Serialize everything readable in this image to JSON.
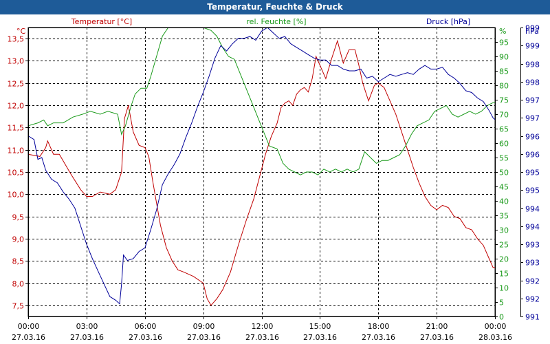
{
  "window": {
    "title": "Temperatur, Feuchte & Druck"
  },
  "colors": {
    "temperature": "#c00000",
    "humidity": "#1a9a1a",
    "pressure": "#000099",
    "titlebar": "#1e5b98"
  },
  "chart_data": {
    "type": "line",
    "title": "Temperatur, Feuchte & Druck",
    "grid": true,
    "x": {
      "range": [
        0,
        24
      ],
      "unit": "hours since 27.03.16 00:00",
      "tick_labels": [
        {
          "time": "00:00",
          "date": "27.03.16"
        },
        {
          "time": "03:00",
          "date": "27.03.16"
        },
        {
          "time": "06:00",
          "date": "27.03.16"
        },
        {
          "time": "09:00",
          "date": "27.03.16"
        },
        {
          "time": "12:00",
          "date": "27.03.16"
        },
        {
          "time": "15:00",
          "date": "27.03.16"
        },
        {
          "time": "18:00",
          "date": "27.03.16"
        },
        {
          "time": "21:00",
          "date": "27.03.16"
        },
        {
          "time": "00:00",
          "date": "28.03.16"
        }
      ]
    },
    "axes": {
      "temperature": {
        "label": "Temperatur [°C]",
        "unit": "°C",
        "range": [
          7.25,
          13.75
        ],
        "ticks": [
          "13,5",
          "13,0",
          "12,5",
          "12,0",
          "11,5",
          "11,0",
          "10,5",
          "10,0",
          "9,5",
          "9,0",
          "8,5",
          "8,0",
          "7,5"
        ]
      },
      "humidity": {
        "label": "rel. Feuchte [%]",
        "unit": "%",
        "range": [
          0,
          100
        ],
        "ticks": [
          "95",
          "90",
          "85",
          "80",
          "75",
          "70",
          "65",
          "60",
          "55",
          "50",
          "45",
          "40",
          "35",
          "30",
          "25",
          "20",
          "15",
          "10",
          "5",
          "0"
        ]
      },
      "pressure": {
        "label": "Druck [hPa]",
        "unit": "hPa",
        "range": [
          991,
          999
        ],
        "ticks": [
          "999",
          "999",
          "998",
          "998",
          "997",
          "997",
          "996",
          "996",
          "995",
          "995",
          "994",
          "994",
          "993",
          "993",
          "992",
          "992",
          "991"
        ]
      }
    },
    "series": [
      {
        "name": "Temperatur [°C]",
        "axis": "temperature",
        "points": [
          [
            0,
            10.9
          ],
          [
            0.6,
            10.85
          ],
          [
            0.9,
            11.05
          ],
          [
            1.0,
            11.2
          ],
          [
            1.3,
            10.9
          ],
          [
            1.6,
            10.9
          ],
          [
            2.2,
            10.45
          ],
          [
            2.7,
            10.1
          ],
          [
            3.0,
            9.95
          ],
          [
            3.3,
            9.95
          ],
          [
            3.7,
            10.05
          ],
          [
            4.2,
            10.0
          ],
          [
            4.5,
            10.1
          ],
          [
            4.8,
            10.5
          ],
          [
            4.95,
            11.7
          ],
          [
            5.15,
            12.0
          ],
          [
            5.4,
            11.4
          ],
          [
            5.7,
            11.1
          ],
          [
            6.0,
            11.05
          ],
          [
            6.2,
            10.85
          ],
          [
            6.4,
            10.3
          ],
          [
            6.6,
            9.8
          ],
          [
            6.8,
            9.3
          ],
          [
            7.1,
            8.8
          ],
          [
            7.4,
            8.5
          ],
          [
            7.7,
            8.3
          ],
          [
            8.0,
            8.25
          ],
          [
            8.5,
            8.15
          ],
          [
            9.0,
            8.0
          ],
          [
            9.2,
            7.65
          ],
          [
            9.4,
            7.5
          ],
          [
            9.7,
            7.65
          ],
          [
            10.0,
            7.85
          ],
          [
            10.4,
            8.25
          ],
          [
            10.8,
            8.85
          ],
          [
            11.2,
            9.4
          ],
          [
            11.6,
            9.9
          ],
          [
            11.9,
            10.4
          ],
          [
            12.2,
            10.9
          ],
          [
            12.5,
            11.3
          ],
          [
            12.8,
            11.6
          ],
          [
            13.0,
            11.95
          ],
          [
            13.2,
            12.05
          ],
          [
            13.4,
            12.1
          ],
          [
            13.6,
            12.0
          ],
          [
            13.8,
            12.25
          ],
          [
            14.0,
            12.35
          ],
          [
            14.2,
            12.4
          ],
          [
            14.4,
            12.3
          ],
          [
            14.6,
            12.6
          ],
          [
            14.8,
            13.1
          ],
          [
            15.0,
            12.9
          ],
          [
            15.3,
            12.6
          ],
          [
            15.6,
            13.05
          ],
          [
            15.9,
            13.45
          ],
          [
            16.2,
            12.95
          ],
          [
            16.5,
            13.25
          ],
          [
            16.8,
            13.25
          ],
          [
            17.0,
            12.9
          ],
          [
            17.2,
            12.5
          ],
          [
            17.5,
            12.1
          ],
          [
            17.8,
            12.45
          ],
          [
            18.0,
            12.5
          ],
          [
            18.3,
            12.4
          ],
          [
            18.6,
            12.1
          ],
          [
            18.9,
            11.8
          ],
          [
            19.2,
            11.4
          ],
          [
            19.5,
            11.0
          ],
          [
            19.8,
            10.6
          ],
          [
            20.1,
            10.25
          ],
          [
            20.4,
            9.95
          ],
          [
            20.7,
            9.75
          ],
          [
            21.0,
            9.65
          ],
          [
            21.3,
            9.75
          ],
          [
            21.6,
            9.7
          ],
          [
            21.9,
            9.5
          ],
          [
            22.2,
            9.45
          ],
          [
            22.5,
            9.25
          ],
          [
            22.8,
            9.2
          ],
          [
            23.1,
            9.0
          ],
          [
            23.4,
            8.85
          ],
          [
            23.7,
            8.55
          ],
          [
            23.9,
            8.35
          ],
          [
            24.0,
            8.35
          ]
        ]
      },
      {
        "name": "rel. Feuchte [%]",
        "axis": "humidity",
        "points": [
          [
            0,
            66
          ],
          [
            0.5,
            67
          ],
          [
            0.8,
            68
          ],
          [
            1.0,
            66
          ],
          [
            1.3,
            67
          ],
          [
            1.8,
            67
          ],
          [
            2.3,
            69
          ],
          [
            2.8,
            70
          ],
          [
            3.2,
            71
          ],
          [
            3.7,
            70
          ],
          [
            4.1,
            71
          ],
          [
            4.6,
            70
          ],
          [
            4.8,
            63
          ],
          [
            5.0,
            66
          ],
          [
            5.3,
            73
          ],
          [
            5.5,
            77
          ],
          [
            5.8,
            79
          ],
          [
            6.1,
            79
          ],
          [
            6.3,
            83
          ],
          [
            6.6,
            90
          ],
          [
            6.9,
            97
          ],
          [
            7.2,
            100
          ],
          [
            7.5,
            100
          ],
          [
            8.0,
            100
          ],
          [
            8.5,
            100
          ],
          [
            9.0,
            100
          ],
          [
            9.4,
            99
          ],
          [
            9.7,
            97
          ],
          [
            10.0,
            93
          ],
          [
            10.3,
            90
          ],
          [
            10.6,
            89
          ],
          [
            10.9,
            84
          ],
          [
            11.2,
            79
          ],
          [
            11.5,
            74
          ],
          [
            11.8,
            69
          ],
          [
            12.1,
            64
          ],
          [
            12.4,
            59
          ],
          [
            12.8,
            58
          ],
          [
            13.1,
            53
          ],
          [
            13.4,
            51
          ],
          [
            13.7,
            50
          ],
          [
            14.0,
            49
          ],
          [
            14.3,
            50
          ],
          [
            14.6,
            50
          ],
          [
            14.9,
            49
          ],
          [
            15.2,
            51
          ],
          [
            15.5,
            50
          ],
          [
            15.8,
            51
          ],
          [
            16.1,
            50
          ],
          [
            16.4,
            51
          ],
          [
            16.7,
            50
          ],
          [
            17.0,
            51
          ],
          [
            17.3,
            57
          ],
          [
            17.6,
            55
          ],
          [
            17.9,
            53
          ],
          [
            18.2,
            54
          ],
          [
            18.5,
            54
          ],
          [
            18.8,
            55
          ],
          [
            19.1,
            56
          ],
          [
            19.4,
            59
          ],
          [
            19.7,
            63
          ],
          [
            20.0,
            66
          ],
          [
            20.3,
            67
          ],
          [
            20.6,
            68
          ],
          [
            20.9,
            71
          ],
          [
            21.2,
            72
          ],
          [
            21.5,
            73
          ],
          [
            21.8,
            70
          ],
          [
            22.1,
            69
          ],
          [
            22.4,
            70
          ],
          [
            22.7,
            71
          ],
          [
            23.0,
            70
          ],
          [
            23.3,
            71
          ],
          [
            23.6,
            73
          ],
          [
            23.9,
            74
          ],
          [
            24.0,
            74
          ]
        ]
      },
      {
        "name": "Druck [hPa]",
        "axis": "pressure",
        "points": [
          [
            0,
            996.0
          ],
          [
            0.3,
            995.9
          ],
          [
            0.5,
            995.35
          ],
          [
            0.7,
            995.4
          ],
          [
            0.9,
            995.05
          ],
          [
            1.2,
            994.8
          ],
          [
            1.5,
            994.7
          ],
          [
            1.8,
            994.45
          ],
          [
            2.1,
            994.25
          ],
          [
            2.4,
            994.0
          ],
          [
            2.7,
            993.5
          ],
          [
            3.0,
            993.0
          ],
          [
            3.3,
            992.6
          ],
          [
            3.6,
            992.25
          ],
          [
            3.9,
            991.9
          ],
          [
            4.2,
            991.55
          ],
          [
            4.5,
            991.45
          ],
          [
            4.7,
            991.35
          ],
          [
            4.8,
            991.9
          ],
          [
            4.9,
            992.7
          ],
          [
            5.1,
            992.55
          ],
          [
            5.4,
            992.6
          ],
          [
            5.7,
            992.8
          ],
          [
            6.0,
            992.9
          ],
          [
            6.3,
            993.4
          ],
          [
            6.6,
            993.95
          ],
          [
            6.9,
            994.65
          ],
          [
            7.2,
            994.95
          ],
          [
            7.5,
            995.2
          ],
          [
            7.8,
            995.5
          ],
          [
            8.1,
            995.95
          ],
          [
            8.4,
            996.35
          ],
          [
            8.7,
            996.8
          ],
          [
            9.0,
            997.2
          ],
          [
            9.3,
            997.65
          ],
          [
            9.6,
            998.15
          ],
          [
            9.9,
            998.5
          ],
          [
            10.2,
            998.35
          ],
          [
            10.5,
            998.55
          ],
          [
            10.8,
            998.7
          ],
          [
            11.1,
            998.7
          ],
          [
            11.4,
            998.75
          ],
          [
            11.7,
            998.65
          ],
          [
            12.0,
            998.9
          ],
          [
            12.3,
            999.0
          ],
          [
            12.6,
            998.85
          ],
          [
            12.9,
            998.7
          ],
          [
            13.2,
            998.75
          ],
          [
            13.5,
            998.55
          ],
          [
            13.8,
            998.45
          ],
          [
            14.1,
            998.35
          ],
          [
            14.4,
            998.25
          ],
          [
            14.7,
            998.15
          ],
          [
            15.0,
            998.1
          ],
          [
            15.3,
            998.1
          ],
          [
            15.6,
            997.95
          ],
          [
            15.9,
            997.95
          ],
          [
            16.2,
            997.85
          ],
          [
            16.5,
            997.8
          ],
          [
            16.8,
            997.8
          ],
          [
            17.1,
            997.85
          ],
          [
            17.4,
            997.6
          ],
          [
            17.7,
            997.65
          ],
          [
            18.0,
            997.5
          ],
          [
            18.3,
            997.6
          ],
          [
            18.6,
            997.7
          ],
          [
            18.9,
            997.65
          ],
          [
            19.2,
            997.7
          ],
          [
            19.5,
            997.75
          ],
          [
            19.8,
            997.7
          ],
          [
            20.1,
            997.85
          ],
          [
            20.4,
            997.95
          ],
          [
            20.7,
            997.85
          ],
          [
            21.0,
            997.85
          ],
          [
            21.3,
            997.9
          ],
          [
            21.6,
            997.7
          ],
          [
            21.9,
            997.6
          ],
          [
            22.2,
            997.45
          ],
          [
            22.5,
            997.25
          ],
          [
            22.8,
            997.2
          ],
          [
            23.1,
            997.05
          ],
          [
            23.4,
            996.95
          ],
          [
            23.7,
            996.7
          ],
          [
            23.9,
            996.5
          ],
          [
            24.0,
            996.45
          ]
        ]
      }
    ]
  }
}
